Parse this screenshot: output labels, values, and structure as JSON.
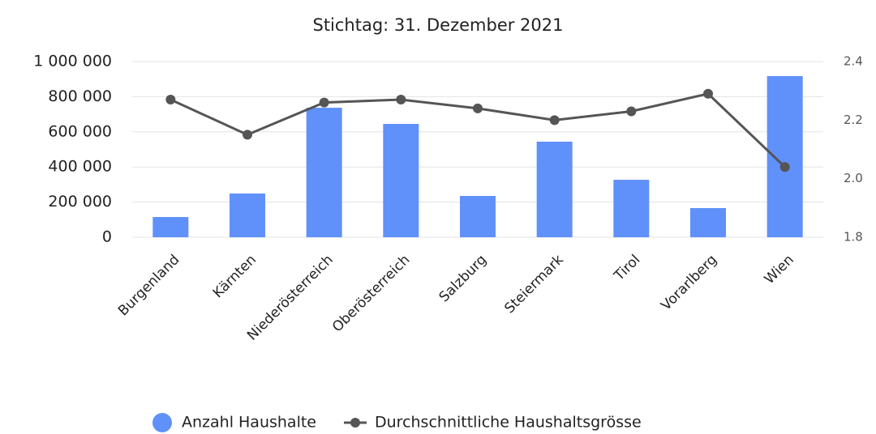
{
  "chart_data": {
    "type": "bar_line",
    "title": "Stichtag: 31. Dezember 2021",
    "categories": [
      "Burgenland",
      "Kärnten",
      "Niederösterreich",
      "Oberösterreich",
      "Salzburg",
      "Steiermark",
      "Tirol",
      "Vorarlberg",
      "Wien"
    ],
    "series": [
      {
        "name": "Anzahl Haushalte",
        "color": "#6090fa",
        "type": "bar",
        "values": [
          115000,
          249000,
          737000,
          645000,
          235000,
          544000,
          327000,
          166000,
          917000
        ]
      },
      {
        "name": "Durchschnittliche Haushaltsgrösse",
        "color": "#555555",
        "type": "line",
        "axis": "y2",
        "values": [
          2.27,
          2.15,
          2.26,
          2.27,
          2.24,
          2.2,
          2.23,
          2.29,
          2.04
        ]
      }
    ],
    "ylim": [
      0,
      1000000
    ],
    "yticks": [
      0,
      {
        "value": 200000,
        "label": "200 000"
      },
      {
        "value": 400000,
        "label": "400 000"
      },
      {
        "value": 600000,
        "label": "600 000"
      },
      {
        "value": 800000,
        "label": "800 000"
      },
      {
        "value": 1000000,
        "label": "1 000 000"
      }
    ],
    "y2lim": [
      1.8,
      2.4
    ],
    "y2ticks": [
      1.8,
      {
        "value": 2.0,
        "label": "2.0"
      },
      2.2,
      2.4
    ],
    "grid": true
  }
}
